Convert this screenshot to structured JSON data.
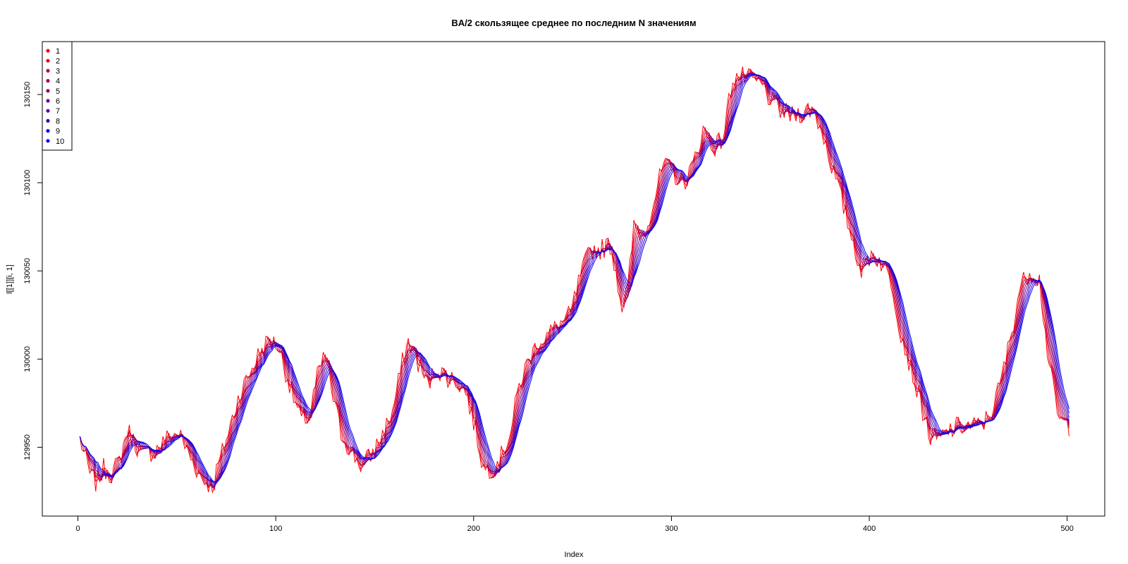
{
  "chart_data": {
    "type": "line",
    "title": "BA/2 скользящее среднее по последним N значениям",
    "xlabel": "Index",
    "ylabel": "l[[1]][i, 1]",
    "xlim": [
      -18,
      519
    ],
    "ylim": [
      129911,
      130180
    ],
    "x_ticks": [
      0,
      100,
      200,
      300,
      400,
      500
    ],
    "x_tick_labels": [
      "0",
      "100",
      "200",
      "300",
      "400",
      "500"
    ],
    "y_ticks": [
      129950,
      130000,
      130050,
      130100,
      130150
    ],
    "y_tick_labels": [
      "129950",
      "130000",
      "130050",
      "130100",
      "130150"
    ],
    "legend_position": "top-left",
    "legend": [
      {
        "label": "1",
        "color": "#FF0000"
      },
      {
        "label": "2",
        "color": "#E3001C"
      },
      {
        "label": "3",
        "color": "#C60039"
      },
      {
        "label": "4",
        "color": "#AA0055"
      },
      {
        "label": "5",
        "color": "#8E0071"
      },
      {
        "label": "6",
        "color": "#71008E"
      },
      {
        "label": "7",
        "color": "#5500AA"
      },
      {
        "label": "8",
        "color": "#3900C6"
      },
      {
        "label": "9",
        "color": "#1C00E3"
      },
      {
        "label": "10",
        "color": "#0000FF"
      }
    ],
    "series_base": {
      "x": [
        0,
        5,
        8,
        12,
        16,
        20,
        24,
        28,
        32,
        38,
        44,
        50,
        56,
        62,
        67,
        70,
        75,
        80,
        85,
        90,
        95,
        100,
        104,
        108,
        112,
        116,
        120,
        124,
        128,
        132,
        137,
        142,
        147,
        152,
        158,
        163,
        166,
        171,
        176,
        180,
        185,
        190,
        195,
        200,
        204,
        208,
        213,
        218,
        222,
        227,
        232,
        238,
        243,
        248,
        253,
        258,
        263,
        268,
        271,
        274,
        277,
        280,
        285,
        290,
        295,
        300,
        305,
        310,
        315,
        320,
        325,
        330,
        335,
        340,
        345,
        350,
        355,
        360,
        365,
        370,
        375,
        380,
        385,
        390,
        395,
        400,
        405,
        410,
        415,
        420,
        425,
        430,
        435,
        440,
        445,
        450,
        455,
        460,
        465,
        470,
        475,
        480,
        485,
        490,
        495,
        500
      ],
      "y": [
        129955,
        129935,
        129930,
        129938,
        129935,
        129942,
        129960,
        129952,
        129946,
        129948,
        129955,
        129958,
        129944,
        129932,
        129928,
        129940,
        129958,
        129978,
        129990,
        130002,
        130010,
        130008,
        129993,
        129978,
        129965,
        129968,
        129990,
        130002,
        129978,
        129958,
        129948,
        129940,
        129945,
        129955,
        129970,
        129998,
        130010,
        129998,
        129985,
        129995,
        129990,
        129988,
        129982,
        129960,
        129938,
        129938,
        129945,
        129960,
        129985,
        130000,
        130010,
        130015,
        130020,
        130025,
        130047,
        130062,
        130062,
        130065,
        130050,
        130030,
        130040,
        130075,
        130070,
        130090,
        130110,
        130105,
        130100,
        130110,
        130130,
        130120,
        130125,
        130160,
        130160,
        130158,
        130155,
        130145,
        130140,
        130138,
        130140,
        130142,
        130130,
        130110,
        130090,
        130070,
        130050,
        130060,
        130055,
        130045,
        130015,
        129995,
        129975,
        129955,
        129955,
        129960,
        129962,
        129962,
        129962,
        129968,
        129985,
        130010,
        130040,
        130050,
        130045,
        129995,
        129965,
        129962
      ],
      "seed": 7
    }
  }
}
